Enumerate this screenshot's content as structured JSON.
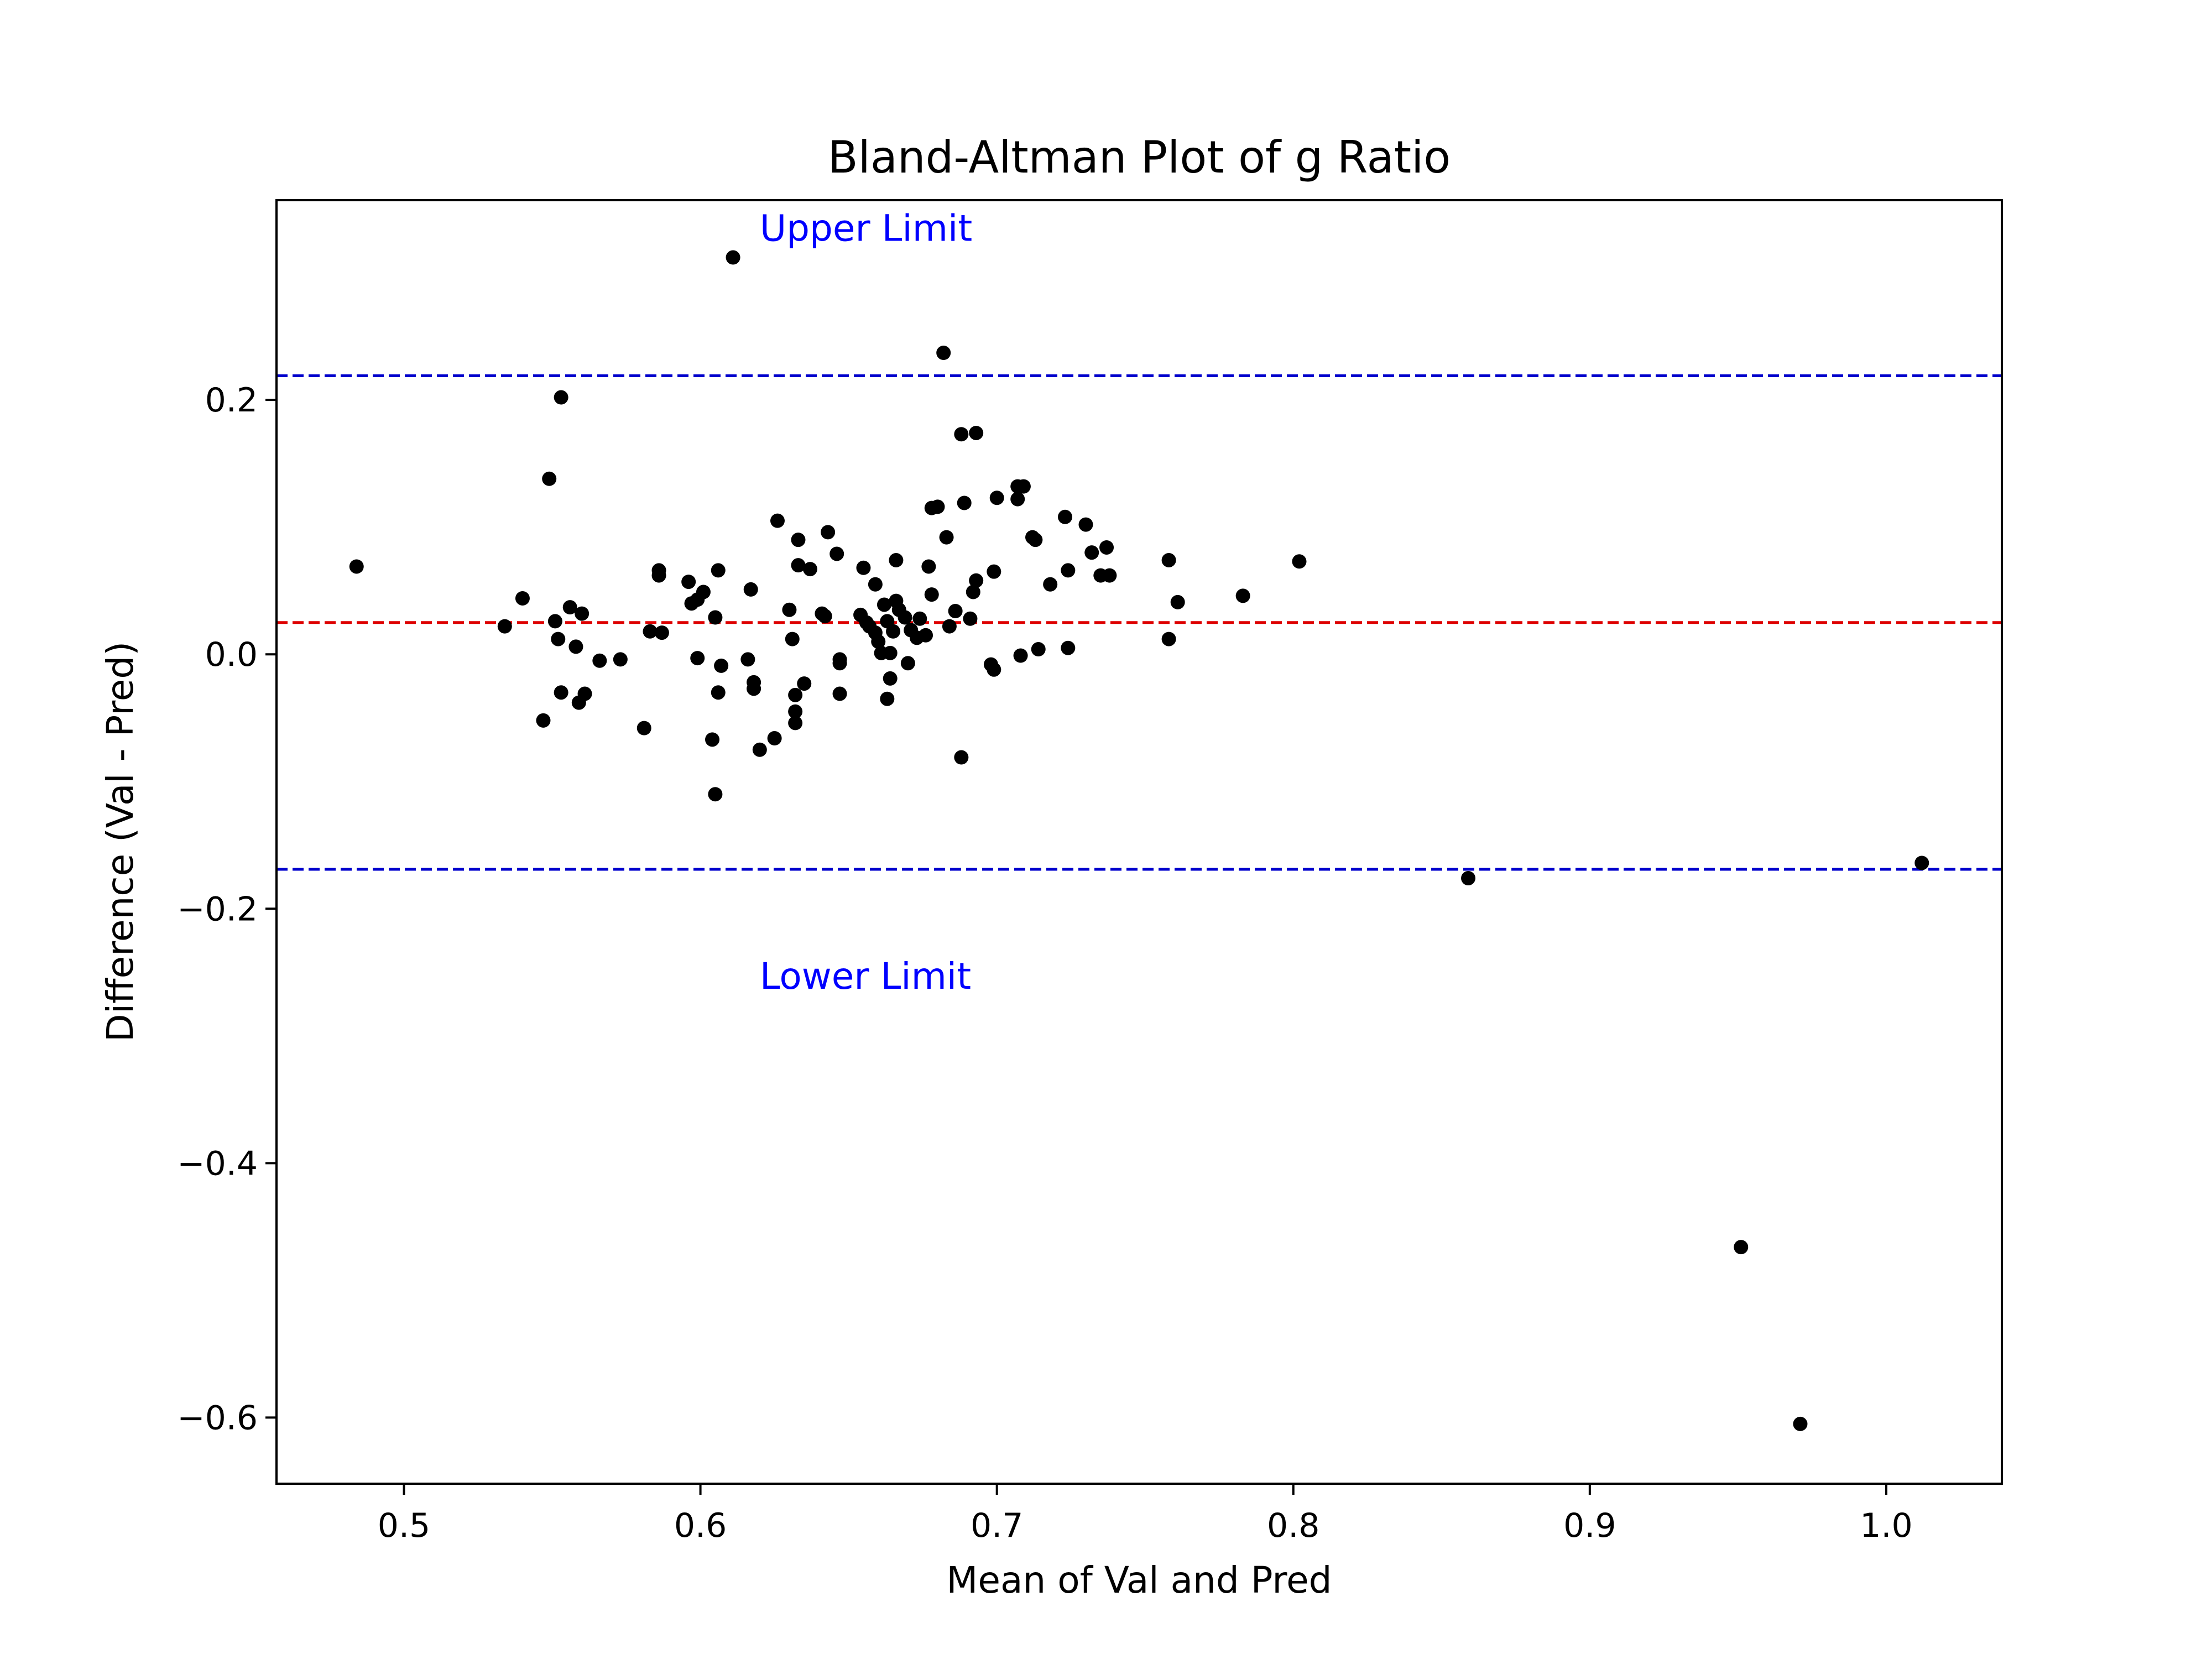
{
  "chart_data": {
    "type": "scatter",
    "title": "Bland-Altman Plot of g Ratio",
    "xlabel": "Mean of Val and Pred",
    "ylabel": "Difference (Val - Pred)",
    "xlim": [
      0.457,
      1.039
    ],
    "ylim": [
      -0.652,
      0.357
    ],
    "x_ticks": [
      0.5,
      0.6,
      0.7,
      0.8,
      0.9,
      1.0
    ],
    "x_tick_labels": [
      "0.5",
      "0.6",
      "0.7",
      "0.8",
      "0.9",
      "1.0"
    ],
    "y_ticks": [
      0.2,
      0.0,
      -0.2,
      -0.4,
      -0.6
    ],
    "y_tick_labels": [
      "0.2",
      "0.0",
      "−0.2",
      "−0.4",
      "−0.6"
    ],
    "grid": false,
    "reference_lines": [
      {
        "y": 0.219,
        "color": "#0000cc",
        "style": "dashed"
      },
      {
        "y": 0.025,
        "color": "#dd0000",
        "style": "dashed"
      },
      {
        "y": -0.169,
        "color": "#0000cc",
        "style": "dashed"
      }
    ],
    "annotations": [
      {
        "text": "Upper Limit",
        "x": 0.62,
        "y": 0.325,
        "color": "#0000ff"
      },
      {
        "text": "Lower Limit",
        "x": 0.62,
        "y": -0.263,
        "color": "#0000ff"
      }
    ],
    "point_color": "#000000",
    "points": [
      [
        0.484,
        0.069
      ],
      [
        0.534,
        0.022
      ],
      [
        0.54,
        0.044
      ],
      [
        0.547,
        -0.052
      ],
      [
        0.549,
        0.138
      ],
      [
        0.551,
        0.026
      ],
      [
        0.552,
        0.012
      ],
      [
        0.553,
        -0.03
      ],
      [
        0.553,
        0.202
      ],
      [
        0.556,
        0.037
      ],
      [
        0.558,
        0.006
      ],
      [
        0.559,
        -0.038
      ],
      [
        0.56,
        0.032
      ],
      [
        0.561,
        -0.031
      ],
      [
        0.566,
        -0.005
      ],
      [
        0.573,
        -0.004
      ],
      [
        0.581,
        -0.058
      ],
      [
        0.583,
        0.018
      ],
      [
        0.586,
        0.066
      ],
      [
        0.586,
        0.062
      ],
      [
        0.587,
        0.017
      ],
      [
        0.596,
        0.057
      ],
      [
        0.597,
        0.04
      ],
      [
        0.599,
        0.043
      ],
      [
        0.599,
        -0.003
      ],
      [
        0.601,
        0.049
      ],
      [
        0.604,
        -0.067
      ],
      [
        0.605,
        0.029
      ],
      [
        0.605,
        -0.11
      ],
      [
        0.606,
        -0.03
      ],
      [
        0.606,
        0.066
      ],
      [
        0.607,
        -0.009
      ],
      [
        0.611,
        0.312
      ],
      [
        0.616,
        -0.004
      ],
      [
        0.617,
        0.051
      ],
      [
        0.618,
        -0.027
      ],
      [
        0.618,
        -0.022
      ],
      [
        0.62,
        -0.075
      ],
      [
        0.625,
        -0.066
      ],
      [
        0.626,
        0.105
      ],
      [
        0.63,
        0.035
      ],
      [
        0.631,
        0.012
      ],
      [
        0.632,
        -0.032
      ],
      [
        0.632,
        -0.045
      ],
      [
        0.632,
        -0.054
      ],
      [
        0.633,
        0.07
      ],
      [
        0.633,
        0.09
      ],
      [
        0.635,
        -0.023
      ],
      [
        0.637,
        0.067
      ],
      [
        0.641,
        0.032
      ],
      [
        0.642,
        0.03
      ],
      [
        0.643,
        0.096
      ],
      [
        0.646,
        0.079
      ],
      [
        0.647,
        -0.004
      ],
      [
        0.647,
        -0.007
      ],
      [
        0.647,
        -0.031
      ],
      [
        0.654,
        0.031
      ],
      [
        0.655,
        0.068
      ],
      [
        0.656,
        0.025
      ],
      [
        0.657,
        0.022
      ],
      [
        0.659,
        0.055
      ],
      [
        0.659,
        0.017
      ],
      [
        0.66,
        0.01
      ],
      [
        0.661,
        0.001
      ],
      [
        0.662,
        0.039
      ],
      [
        0.663,
        0.026
      ],
      [
        0.663,
        -0.035
      ],
      [
        0.664,
        -0.019
      ],
      [
        0.664,
        0.001
      ],
      [
        0.665,
        0.018
      ],
      [
        0.666,
        0.074
      ],
      [
        0.666,
        0.042
      ],
      [
        0.667,
        0.035
      ],
      [
        0.669,
        0.029
      ],
      [
        0.67,
        -0.007
      ],
      [
        0.671,
        0.019
      ],
      [
        0.673,
        0.013
      ],
      [
        0.674,
        0.028
      ],
      [
        0.676,
        0.015
      ],
      [
        0.677,
        0.069
      ],
      [
        0.678,
        0.047
      ],
      [
        0.678,
        0.115
      ],
      [
        0.68,
        0.116
      ],
      [
        0.682,
        0.237
      ],
      [
        0.683,
        0.092
      ],
      [
        0.684,
        0.022
      ],
      [
        0.686,
        0.034
      ],
      [
        0.688,
        0.173
      ],
      [
        0.688,
        -0.081
      ],
      [
        0.689,
        0.119
      ],
      [
        0.691,
        0.028
      ],
      [
        0.692,
        0.049
      ],
      [
        0.693,
        0.174
      ],
      [
        0.693,
        0.058
      ],
      [
        0.698,
        -0.008
      ],
      [
        0.699,
        -0.012
      ],
      [
        0.699,
        0.065
      ],
      [
        0.7,
        0.123
      ],
      [
        0.707,
        0.132
      ],
      [
        0.707,
        0.122
      ],
      [
        0.708,
        -0.001
      ],
      [
        0.709,
        0.132
      ],
      [
        0.712,
        0.092
      ],
      [
        0.713,
        0.09
      ],
      [
        0.714,
        0.004
      ],
      [
        0.718,
        0.055
      ],
      [
        0.723,
        0.108
      ],
      [
        0.724,
        0.066
      ],
      [
        0.724,
        0.005
      ],
      [
        0.73,
        0.102
      ],
      [
        0.732,
        0.08
      ],
      [
        0.735,
        0.062
      ],
      [
        0.737,
        0.084
      ],
      [
        0.738,
        0.062
      ],
      [
        0.758,
        0.074
      ],
      [
        0.758,
        0.012
      ],
      [
        0.761,
        0.041
      ],
      [
        0.783,
        0.046
      ],
      [
        0.802,
        0.073
      ],
      [
        0.859,
        -0.176
      ],
      [
        0.951,
        -0.466
      ],
      [
        0.971,
        -0.605
      ],
      [
        1.012,
        -0.164
      ]
    ]
  }
}
